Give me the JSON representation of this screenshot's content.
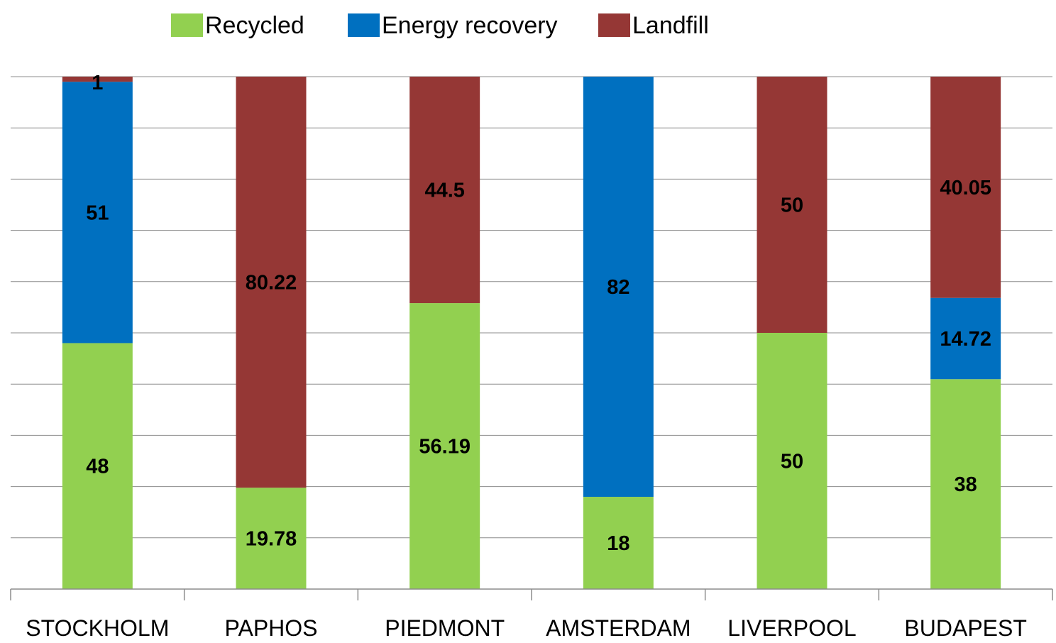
{
  "chart_data": {
    "type": "bar",
    "stacked": true,
    "normalized": "percent",
    "categories": [
      "STOCKHOLM",
      "PAPHOS",
      "PIEDMONT",
      "AMSTERDAM",
      "LIVERPOOL",
      "BUDAPEST"
    ],
    "series": [
      {
        "name": "Recycled",
        "color": "#92d050",
        "values": [
          48,
          19.78,
          56.19,
          18,
          50,
          38
        ]
      },
      {
        "name": "Energy recovery",
        "color": "#0070c0",
        "values": [
          51,
          0,
          0,
          82,
          0,
          14.72
        ]
      },
      {
        "name": "Landfill",
        "color": "#953735",
        "values": [
          1,
          80.22,
          44.5,
          0,
          50,
          40.05
        ]
      }
    ],
    "data_labels": [
      [
        "48",
        "19.78",
        "56.19",
        "18",
        "50",
        "38"
      ],
      [
        "51",
        "",
        "",
        "82",
        "",
        "14.72"
      ],
      [
        "1",
        "80.22",
        "44.5",
        "",
        "50",
        "40.05"
      ]
    ],
    "ylim": [
      0,
      100
    ],
    "grid": true,
    "legend_position": "top"
  }
}
